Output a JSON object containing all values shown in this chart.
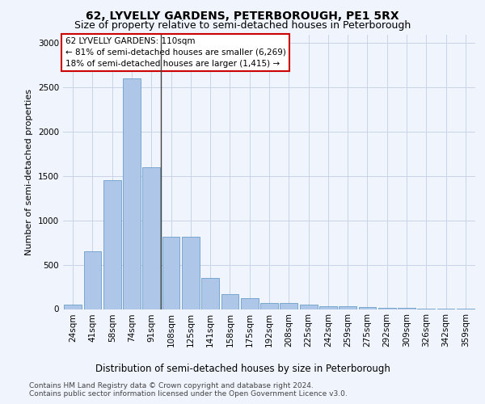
{
  "title1": "62, LYVELLY GARDENS, PETERBOROUGH, PE1 5RX",
  "title2": "Size of property relative to semi-detached houses in Peterborough",
  "xlabel": "Distribution of semi-detached houses by size in Peterborough",
  "ylabel": "Number of semi-detached properties",
  "categories": [
    "24sqm",
    "41sqm",
    "58sqm",
    "74sqm",
    "91sqm",
    "108sqm",
    "125sqm",
    "141sqm",
    "158sqm",
    "175sqm",
    "192sqm",
    "208sqm",
    "225sqm",
    "242sqm",
    "259sqm",
    "275sqm",
    "292sqm",
    "309sqm",
    "326sqm",
    "342sqm",
    "359sqm"
  ],
  "values": [
    50,
    650,
    1450,
    2600,
    1600,
    820,
    820,
    350,
    170,
    120,
    70,
    65,
    50,
    35,
    30,
    20,
    15,
    10,
    8,
    5,
    3
  ],
  "bar_color": "#aec6e8",
  "bar_edge_color": "#6a9fc8",
  "annotation_title": "62 LYVELLY GARDENS: 110sqm",
  "annotation_line1": "← 81% of semi-detached houses are smaller (6,269)",
  "annotation_line2": "18% of semi-detached houses are larger (1,415) →",
  "annotation_box_color": "#ffffff",
  "annotation_box_edge": "#cc0000",
  "vline_x_index": 5,
  "ylim": [
    0,
    3100
  ],
  "yticks": [
    0,
    500,
    1000,
    1500,
    2000,
    2500,
    3000
  ],
  "background_color": "#f0f4fc",
  "plot_bg_color": "#f0f4fc",
  "grid_color": "#c8d4e8",
  "footer1": "Contains HM Land Registry data © Crown copyright and database right 2024.",
  "footer2": "Contains public sector information licensed under the Open Government Licence v3.0.",
  "title1_fontsize": 10,
  "title2_fontsize": 9,
  "xlabel_fontsize": 8.5,
  "ylabel_fontsize": 8,
  "tick_fontsize": 7.5,
  "annotation_fontsize": 7.5,
  "footer_fontsize": 6.5
}
